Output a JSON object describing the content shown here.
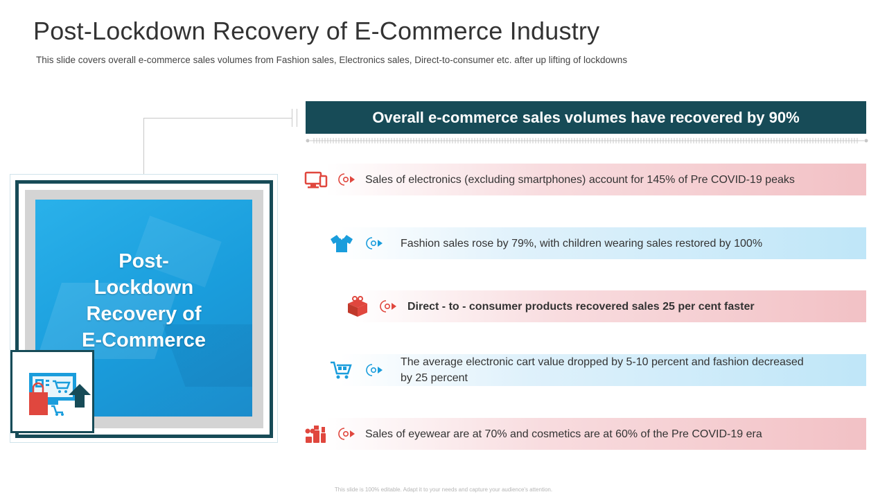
{
  "slide": {
    "title": "Post-Lockdown Recovery of E-Commerce Industry",
    "subtitle": "This slide covers overall  e-commerce sales volumes from Fashion sales, Electronics sales, Direct-to-consumer etc. after up lifting  of lockdowns"
  },
  "card": {
    "title": "Post-\nLockdown\nRecovery of\nE-Commerce",
    "icon": "ecommerce-cart-icon"
  },
  "headline": "Overall e-commerce sales volumes have recovered by 90%",
  "rows": [
    {
      "icon": "monitor-icon",
      "text": "Sales of electronics (excluding smartphones) account for 145% of Pre COVID-19 peaks",
      "color": "#e0473e"
    },
    {
      "icon": "shirt-icon",
      "text": "Fashion sales rose by 79%, with children wearing sales restored by 100%",
      "color": "#1a9ddc"
    },
    {
      "icon": "gift-box-icon",
      "text": "Direct - to - consumer products recovered sales 25 per cent faster",
      "color": "#e0473e"
    },
    {
      "icon": "shopping-cart-icon",
      "text": "The average electronic cart value dropped by 5-10 percent and fashion decreased\nby 25 percent",
      "color": "#1a9ddc"
    },
    {
      "icon": "cosmetics-icon",
      "text": "Sales of eyewear are at 70% and cosmetics are at 60% of the Pre COVID-19 era",
      "color": "#e0473e"
    }
  ],
  "footer": "This slide is 100% editable. Adapt it to your needs and capture your audience's attention.",
  "colors": {
    "dark_teal": "#174b57",
    "accent_red": "#e0473e",
    "accent_blue": "#1a9ddc"
  }
}
